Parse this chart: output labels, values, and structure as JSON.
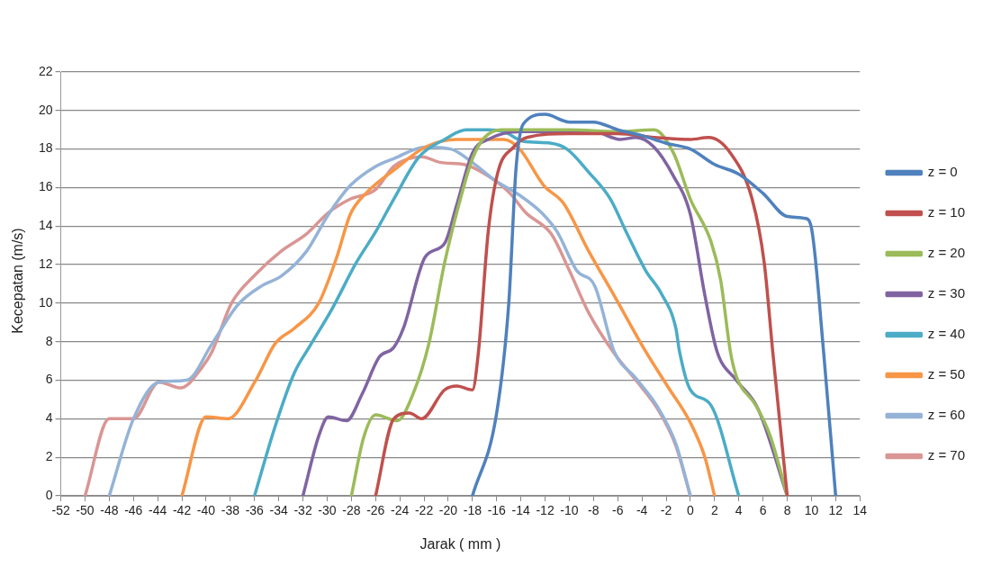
{
  "chart_data": {
    "type": "line",
    "xlabel": "Jarak ( mm )",
    "ylabel": "Kecepatan (m/s)",
    "xlim": [
      -52,
      14
    ],
    "xticks": [
      -52,
      -50,
      -48,
      -46,
      -44,
      -42,
      -40,
      -38,
      -36,
      -34,
      -32,
      -30,
      -28,
      -26,
      -24,
      -22,
      -20,
      -18,
      -16,
      -14,
      -12,
      -10,
      -8,
      -6,
      -4,
      -2,
      0,
      2,
      4,
      6,
      8,
      10,
      12,
      14
    ],
    "ylim": [
      0,
      22
    ],
    "yticks": [
      0,
      2,
      4,
      6,
      8,
      10,
      12,
      14,
      16,
      18,
      20,
      22
    ],
    "grid": "y",
    "legend": "right",
    "marker": "none",
    "line_style": "solid",
    "series": [
      {
        "name": "z = 0",
        "color": "#4f81bd",
        "x": [
          -18,
          -16,
          -15,
          -14.4,
          -13.8,
          -12,
          -10,
          -8,
          -6,
          -4,
          -2,
          0,
          2,
          4,
          6,
          8,
          9.5,
          10,
          11,
          12
        ],
        "values": [
          0,
          4.3,
          10,
          17,
          19.3,
          19.8,
          19.4,
          19.4,
          19,
          18.7,
          18.3,
          18,
          17.2,
          16.7,
          15.7,
          14.5,
          14.4,
          13.9,
          7.5,
          0
        ]
      },
      {
        "name": "z = 10",
        "color": "#c0504d",
        "x": [
          -26,
          -24.5,
          -23.2,
          -22.2,
          -20.3,
          -19.3,
          -18,
          -17.5,
          -16.7,
          -15.9,
          -14.6,
          -13.5,
          -10,
          -6,
          -3,
          0,
          1.5,
          3.3,
          5.1,
          6.1,
          6.8,
          8
        ],
        "values": [
          0,
          4,
          4.3,
          4,
          5.5,
          5.7,
          5.5,
          7.5,
          13.7,
          16.8,
          18.1,
          18.6,
          18.8,
          18.8,
          18.6,
          18.5,
          18.6,
          17.8,
          15.4,
          12.1,
          7.5,
          0
        ]
      },
      {
        "name": "z = 20",
        "color": "#9bbb59",
        "x": [
          -28,
          -27,
          -26,
          -24.2,
          -22.9,
          -21.6,
          -20.3,
          -19,
          -18,
          -17,
          -15.6,
          -10,
          -6,
          -3,
          -1.4,
          0,
          1.7,
          2.5,
          3.3,
          3.8,
          5.4,
          6.6,
          8
        ],
        "values": [
          0,
          3,
          4.2,
          3.9,
          5.3,
          7.9,
          12.1,
          15.4,
          17.5,
          18.6,
          19,
          19,
          18.9,
          19,
          17.8,
          15.4,
          13.2,
          11.2,
          7.5,
          6.2,
          4.7,
          3.1,
          0
        ]
      },
      {
        "name": "z = 30",
        "color": "#8064a2",
        "x": [
          -32,
          -30.7,
          -29.9,
          -28.4,
          -27.1,
          -25.7,
          -24.5,
          -23.7,
          -21.9,
          -20.3,
          -19.3,
          -18,
          -16.7,
          -14,
          -8,
          -5.8,
          -4.5,
          -3,
          -1.4,
          0,
          1.2,
          2.2,
          3.8,
          5.6,
          8
        ],
        "values": [
          0,
          3.1,
          4.1,
          3.9,
          5.3,
          7.2,
          7.7,
          8.7,
          12.4,
          13.1,
          15.1,
          17.8,
          18.5,
          18.9,
          18.9,
          18.5,
          18.6,
          18.1,
          16.6,
          14.6,
          10.4,
          7.5,
          6,
          4.5,
          0
        ]
      },
      {
        "name": "z = 40",
        "color": "#4bacc6",
        "x": [
          -36,
          -34.3,
          -32.7,
          -31.5,
          -29.6,
          -27.6,
          -26,
          -24.5,
          -22.4,
          -20.3,
          -18.5,
          -16.7,
          -15.4,
          -13.8,
          -11.5,
          -10.2,
          -8.4,
          -6.6,
          -5.3,
          -3.7,
          -2.4,
          -1.2,
          -0.9,
          0,
          1.7,
          4
        ],
        "values": [
          0,
          3.6,
          6.4,
          7.7,
          9.7,
          12.1,
          13.7,
          15.4,
          17.6,
          18.5,
          19,
          19,
          18.9,
          18.4,
          18.3,
          18,
          16.8,
          15.4,
          13.7,
          11.7,
          10.5,
          8.7,
          7.5,
          5.5,
          4.7,
          0
        ]
      },
      {
        "name": "z = 50",
        "color": "#f79646",
        "x": [
          -42,
          -40,
          -38.2,
          -35.9,
          -34.3,
          -32.7,
          -30.7,
          -29.2,
          -28.1,
          -26.8,
          -24.5,
          -21.9,
          -19.3,
          -15.4,
          -14.1,
          -12.1,
          -10.5,
          -8.4,
          -6.3,
          -3.7,
          -1.9,
          0,
          1.2,
          2
        ],
        "values": [
          0,
          4.1,
          4,
          6,
          7.9,
          8.7,
          10,
          12.4,
          14.6,
          15.7,
          16.9,
          18.1,
          18.5,
          18.5,
          18,
          16.1,
          15.2,
          12.7,
          10.4,
          7.5,
          5.7,
          3.8,
          2,
          0
        ]
      },
      {
        "name": "z = 60",
        "color": "#95b3d7",
        "x": [
          -48,
          -46,
          -43.9,
          -41.6,
          -39.5,
          -37.4,
          -35.4,
          -33.8,
          -31.7,
          -29.9,
          -28.1,
          -26,
          -24.5,
          -21.9,
          -19.8,
          -18,
          -16.2,
          -14.1,
          -12.3,
          -11,
          -9.4,
          -7.9,
          -6.3,
          -4.5,
          -2.7,
          -1.2,
          0
        ],
        "values": [
          0,
          4,
          5.9,
          6,
          7.9,
          9.9,
          10.9,
          11.4,
          12.7,
          14.6,
          16.1,
          17.1,
          17.5,
          18.1,
          18,
          17.3,
          16.4,
          15.6,
          14.7,
          13.7,
          11.7,
          10.9,
          7.5,
          6.1,
          4.6,
          2.7,
          0
        ]
      },
      {
        "name": "z = 70",
        "color": "#d99694",
        "x": [
          -50,
          -48,
          -46,
          -43.9,
          -42.1,
          -40.3,
          -39.5,
          -37.9,
          -35.9,
          -33.8,
          -31.7,
          -29.9,
          -28.1,
          -26,
          -24.5,
          -22.2,
          -20.6,
          -18.7,
          -16.7,
          -14.9,
          -13.6,
          -11.5,
          -10,
          -8.4,
          -6.3,
          -4.5,
          -2.7,
          -1.2,
          0
        ],
        "values": [
          0,
          4,
          4,
          5.9,
          5.6,
          6.7,
          7.5,
          10,
          11.5,
          12.7,
          13.6,
          14.7,
          15.4,
          15.9,
          17.1,
          17.6,
          17.3,
          17.2,
          16.6,
          15.7,
          14.7,
          13.6,
          11.7,
          9.5,
          7.4,
          6,
          4.5,
          2.6,
          0
        ]
      }
    ]
  }
}
